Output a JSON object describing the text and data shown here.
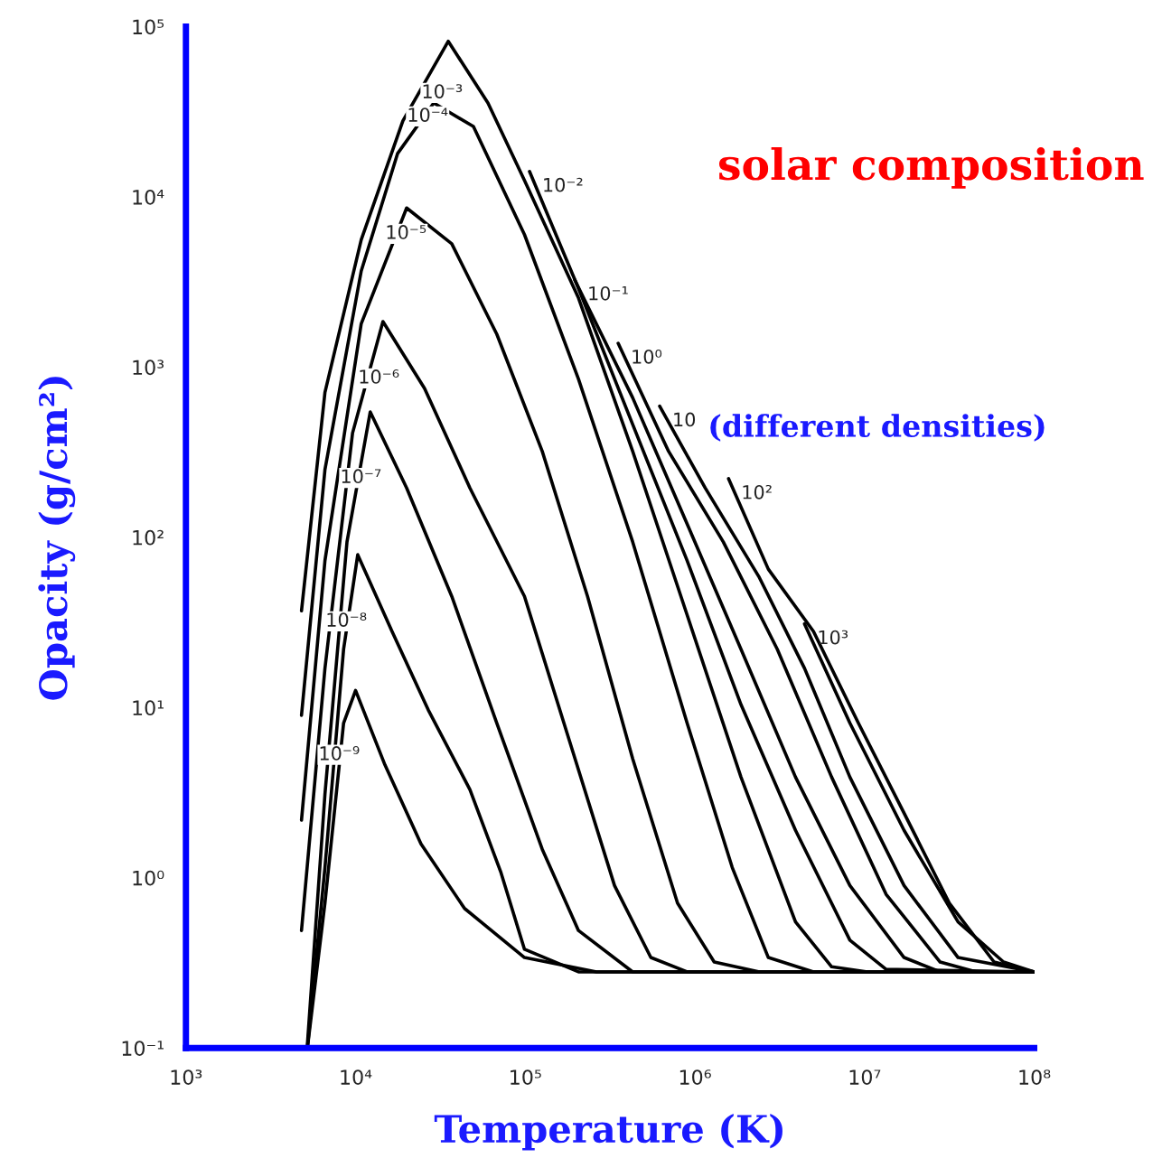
{
  "chart_data": {
    "type": "line",
    "title": "solar composition",
    "xlabel": "Temperature (K)",
    "ylabel": "Opacity (g/cm²)",
    "log": "xy",
    "grid": false,
    "marker": "none",
    "line_style": "solid",
    "xlim": [
      1000,
      100000000
    ],
    "ylim": [
      0.1,
      100000
    ],
    "xticks": [
      {
        "value": 1000,
        "label": "10³"
      },
      {
        "value": 10000,
        "label": "10⁴"
      },
      {
        "value": 100000,
        "label": "10⁵"
      },
      {
        "value": 1000000,
        "label": "10⁶"
      },
      {
        "value": 10000000,
        "label": "10⁷"
      },
      {
        "value": 100000000,
        "label": "10⁸"
      }
    ],
    "yticks": [
      {
        "value": 0.1,
        "label": "10⁻¹"
      },
      {
        "value": 1,
        "label": "10⁰"
      },
      {
        "value": 10,
        "label": "10¹"
      },
      {
        "value": 100,
        "label": "10²"
      },
      {
        "value": 1000,
        "label": "10³"
      },
      {
        "value": 10000,
        "label": "10⁴"
      },
      {
        "value": 100000,
        "label": "10⁵"
      }
    ],
    "series": [
      {
        "name": "10⁻⁹",
        "color": "#000000",
        "x": [
          5200,
          6600,
          8500,
          10000,
          14900,
          24300,
          43900,
          99000,
          263000,
          100000000
        ],
        "values": [
          0.1,
          0.71,
          8.1,
          12.6,
          4.6,
          1.58,
          0.66,
          0.34,
          0.28,
          0.28
        ]
      },
      {
        "name": "10⁻⁸",
        "color": "#000000",
        "x": [
          5200,
          6600,
          8500,
          10300,
          16400,
          26800,
          47200,
          72000,
          99000,
          206000,
          100000000
        ],
        "values": [
          0.1,
          1.15,
          22,
          79,
          28,
          9.7,
          3.3,
          1.07,
          0.38,
          0.28,
          0.28
        ]
      },
      {
        "name": "10⁻⁷",
        "color": "#000000",
        "x": [
          5200,
          6600,
          8900,
          12200,
          20000,
          36900,
          68000,
          126000,
          206000,
          430000,
          100000000
        ],
        "values": [
          0.105,
          3.1,
          94,
          545,
          195,
          45,
          8.1,
          1.47,
          0.49,
          0.28,
          0.28
        ]
      },
      {
        "name": "10⁻⁶",
        "color": "#000000",
        "x": [
          4800,
          6600,
          9600,
          14500,
          25500,
          47200,
          99000,
          182000,
          336000,
          550000,
          900000,
          100000000
        ],
        "values": [
          0.49,
          17,
          410,
          1850,
          750,
          195,
          45,
          6.4,
          0.9,
          0.34,
          0.28,
          0.28
        ]
      },
      {
        "name": "10⁻⁵",
        "color": "#000000",
        "x": [
          4800,
          6600,
          10800,
          20000,
          36900,
          68000,
          126000,
          233000,
          430000,
          790000,
          1300000,
          2400000,
          100000000
        ],
        "values": [
          2.18,
          73,
          1800,
          8600,
          5300,
          1560,
          320,
          45,
          5.0,
          0.71,
          0.32,
          0.28,
          0.28
        ]
      },
      {
        "name": "10⁻⁴",
        "color": "#000000",
        "x": [
          4800,
          6600,
          10800,
          17700,
          28900,
          49500,
          99000,
          206000,
          430000,
          900000,
          1660000,
          2710000,
          5000000,
          100000000
        ],
        "values": [
          9.0,
          250,
          3670,
          18000,
          35600,
          25900,
          6000,
          850,
          94,
          8.1,
          1.15,
          0.34,
          0.28,
          0.28
        ]
      },
      {
        "name": "10⁻³",
        "color": "#000000",
        "x": [
          4800,
          6600,
          10800,
          19000,
          35200,
          60300,
          99000,
          206000,
          430000,
          900000,
          1870000,
          3920000,
          6400000,
          10400000,
          100000000
        ],
        "values": [
          37,
          710,
          5600,
          27900,
          82000,
          35600,
          12500,
          2550,
          320,
          35,
          3.9,
          0.55,
          0.3,
          0.28,
          0.28
        ]
      },
      {
        "name": "10⁻²",
        "color": "#000000",
        "x": [
          106000,
          206000,
          430000,
          900000,
          1870000,
          3920000,
          8200000,
          13400000,
          100000000
        ],
        "values": [
          14100,
          2900,
          460,
          73,
          10.4,
          1.9,
          0.43,
          0.29,
          0.28
        ]
      },
      {
        "name": "10⁻¹",
        "color": "#000000",
        "x": [
          196000,
          430000,
          900000,
          1870000,
          3920000,
          8200000,
          17100000,
          27900000,
          100000000
        ],
        "values": [
          3250,
          660,
          120,
          22,
          3.9,
          0.9,
          0.34,
          0.28,
          0.28
        ]
      },
      {
        "name": "10⁰",
        "color": "#000000",
        "x": [
          353000,
          700000,
          1470000,
          3060000,
          6400000,
          13400000,
          27900000,
          45600000,
          100000000
        ],
        "values": [
          1380,
          320,
          94,
          22,
          3.9,
          0.8,
          0.32,
          0.28,
          0.28
        ]
      },
      {
        "name": "10",
        "color": "#000000",
        "x": [
          620000,
          1150000,
          2400000,
          4430000,
          8200000,
          17100000,
          35600000,
          100000000
        ],
        "values": [
          590,
          195,
          58,
          17,
          3.9,
          0.9,
          0.34,
          0.28
        ]
      },
      {
        "name": "10²",
        "color": "#000000",
        "x": [
          1580000,
          2710000,
          5000000,
          9200000,
          17100000,
          31600000,
          58000000,
          100000000
        ],
        "values": [
          221,
          65,
          28,
          8.1,
          2.4,
          0.71,
          0.32,
          0.28
        ]
      },
      {
        "name": "10³",
        "color": "#000000",
        "x": [
          4430000,
          8200000,
          17100000,
          35600000,
          66000000,
          100000000
        ],
        "values": [
          31,
          8.1,
          1.9,
          0.55,
          0.32,
          0.28
        ]
      }
    ],
    "annotations": [
      "(different densities)"
    ]
  }
}
